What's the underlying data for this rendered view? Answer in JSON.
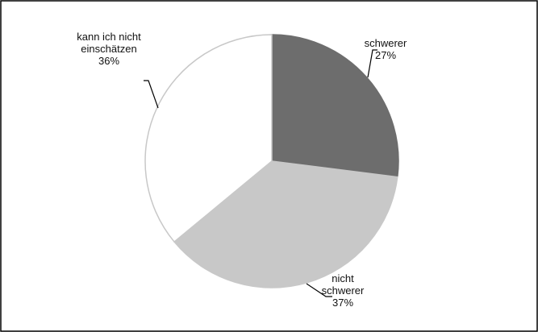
{
  "chart_data": {
    "type": "pie",
    "categories": [
      "schwerer",
      "nicht schwerer",
      "kann ich nicht einschätzen"
    ],
    "values": [
      27,
      37,
      36
    ],
    "value_labels": [
      "27%",
      "37%",
      "36%"
    ],
    "colors": [
      "#6d6d6d",
      "#c8c8c8",
      "#ffffff"
    ]
  }
}
